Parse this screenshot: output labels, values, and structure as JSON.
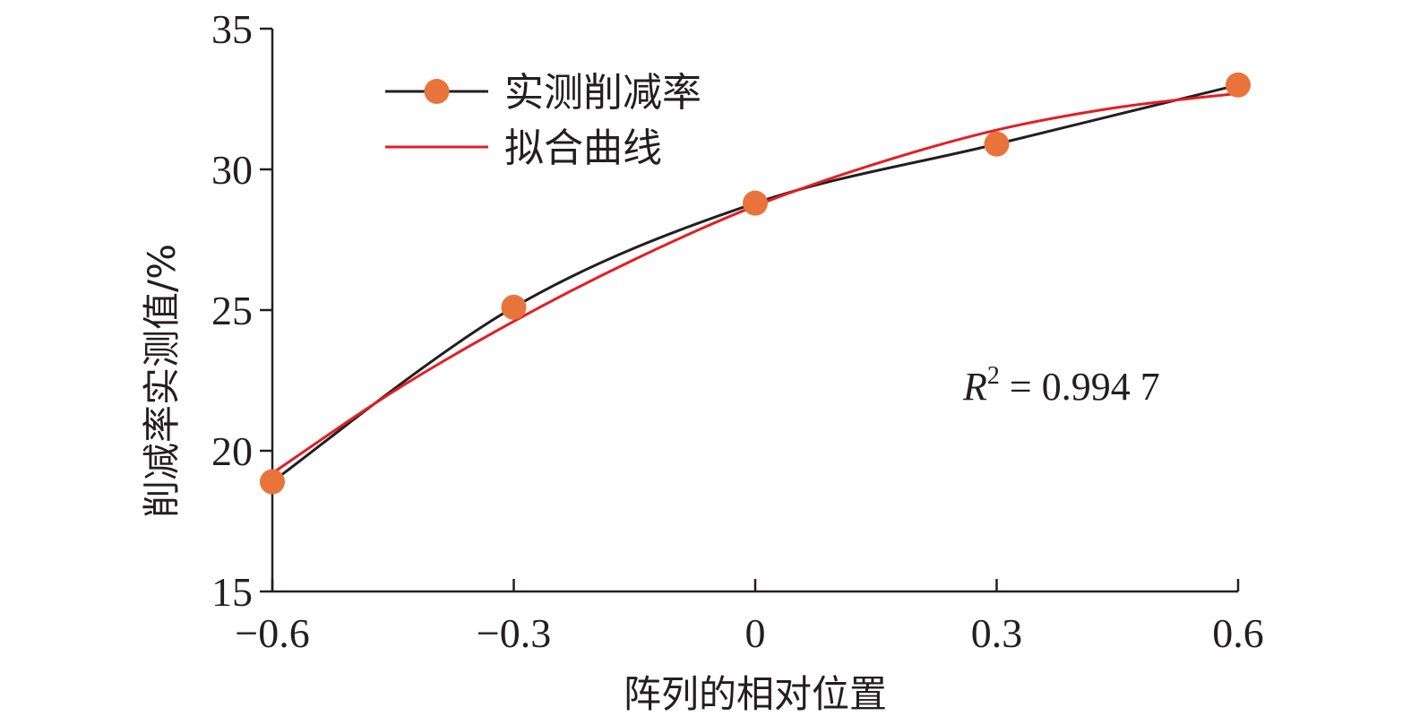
{
  "chart_data": {
    "type": "line",
    "title": "",
    "xlabel": "阵列的相对位置",
    "ylabel": "削减率实测值/%",
    "xlim": [
      -0.6,
      0.6
    ],
    "ylim": [
      15,
      35
    ],
    "x_ticks": [
      -0.6,
      -0.3,
      0,
      0.3,
      0.6
    ],
    "x_tick_labels": [
      "−0.6",
      "−0.3",
      "0",
      "0.3",
      "0.6"
    ],
    "y_ticks": [
      15,
      20,
      25,
      30,
      35
    ],
    "y_tick_labels": [
      "15",
      "20",
      "25",
      "30",
      "35"
    ],
    "grid": false,
    "legend_position": "top-left",
    "series": [
      {
        "name": "实测削减率",
        "x": [
          -0.6,
          -0.3,
          0,
          0.3,
          0.6
        ],
        "y": [
          18.9,
          25.1,
          28.8,
          30.9,
          33.0
        ],
        "line_color": "#231f20",
        "marker_color": "#e8743b",
        "smooth": true
      },
      {
        "name": "拟合曲线",
        "x": [
          -0.6,
          -0.45,
          -0.3,
          -0.15,
          0,
          0.15,
          0.3,
          0.45,
          0.6
        ],
        "y": [
          19.2,
          22.1,
          24.6,
          26.8,
          28.7,
          30.2,
          31.4,
          32.2,
          32.7
        ],
        "line_color": "#e31e24",
        "smooth": true
      }
    ],
    "annotation": {
      "r_symbol": "R",
      "r_exponent": "2",
      "r_value": " = 0.994 7"
    }
  }
}
